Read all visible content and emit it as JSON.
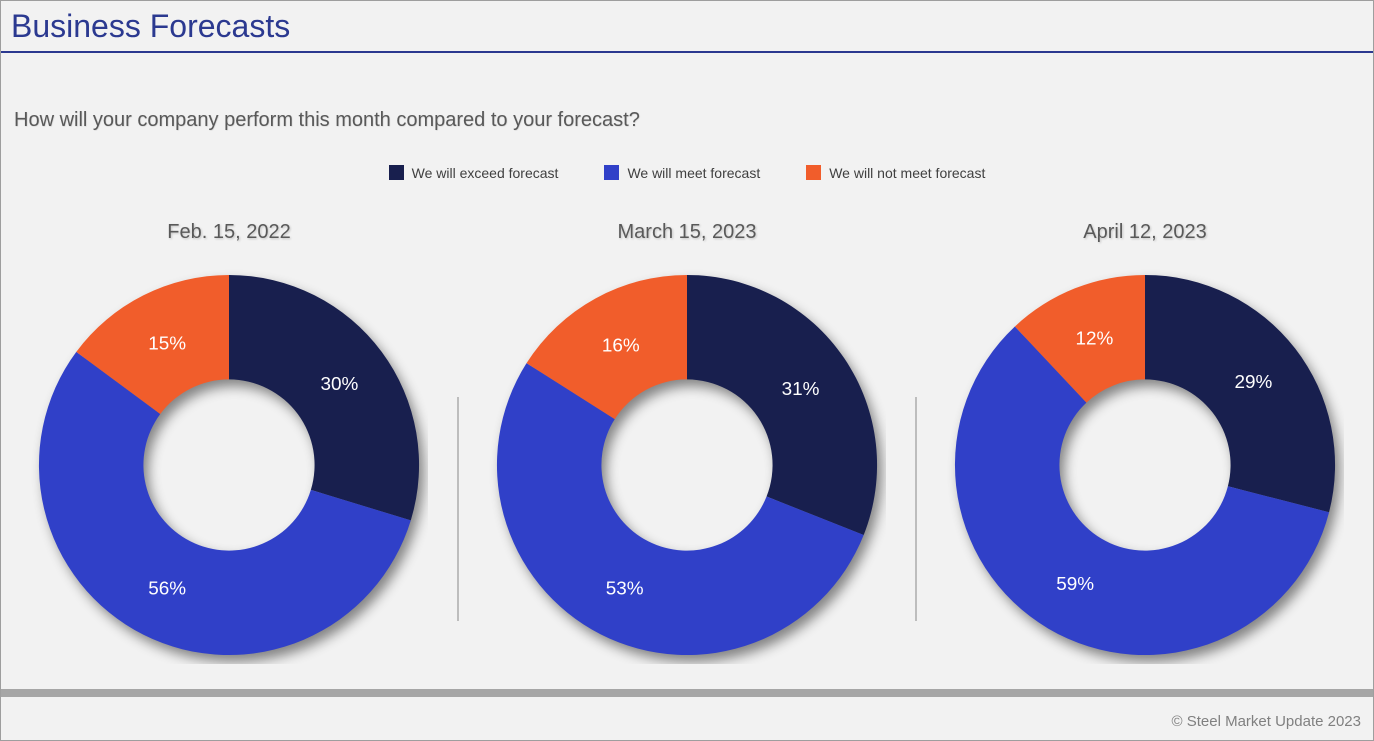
{
  "page": {
    "title": "Business Forecasts",
    "question": "How will your company perform this month compared to your forecast?",
    "footer": "© Steel Market Update 2023",
    "background_color": "#F2F2F2",
    "accent_color": "#2B3990"
  },
  "legend": {
    "items": [
      {
        "label": "We will exceed forecast",
        "color": "#181F4E"
      },
      {
        "label": "We will meet forecast",
        "color": "#3040C8"
      },
      {
        "label": "We will not meet forecast",
        "color": "#F15D2B"
      }
    ]
  },
  "chart_data": [
    {
      "type": "pie",
      "donut": true,
      "title": "Feb. 15, 2022",
      "categories": [
        "We will exceed forecast",
        "We will meet forecast",
        "We will not meet forecast"
      ],
      "values": [
        30,
        56,
        15
      ],
      "labels": [
        "30%",
        "56%",
        "15%"
      ],
      "colors": [
        "#181F4E",
        "#3040C8",
        "#F15D2B"
      ],
      "start_angle_deg": -90,
      "direction": "clockwise",
      "legend_position": "top"
    },
    {
      "type": "pie",
      "donut": true,
      "title": "March 15, 2023",
      "categories": [
        "We will exceed forecast",
        "We will meet forecast",
        "We will not meet forecast"
      ],
      "values": [
        31,
        53,
        16
      ],
      "labels": [
        "31%",
        "53%",
        "16%"
      ],
      "colors": [
        "#181F4E",
        "#3040C8",
        "#F15D2B"
      ],
      "start_angle_deg": -90,
      "direction": "clockwise",
      "legend_position": "top"
    },
    {
      "type": "pie",
      "donut": true,
      "title": "April 12, 2023",
      "categories": [
        "We will exceed forecast",
        "We will meet forecast",
        "We will not meet forecast"
      ],
      "values": [
        29,
        59,
        12
      ],
      "labels": [
        "29%",
        "59%",
        "12%"
      ],
      "colors": [
        "#181F4E",
        "#3040C8",
        "#F15D2B"
      ],
      "start_angle_deg": -90,
      "direction": "clockwise",
      "legend_position": "top"
    }
  ]
}
